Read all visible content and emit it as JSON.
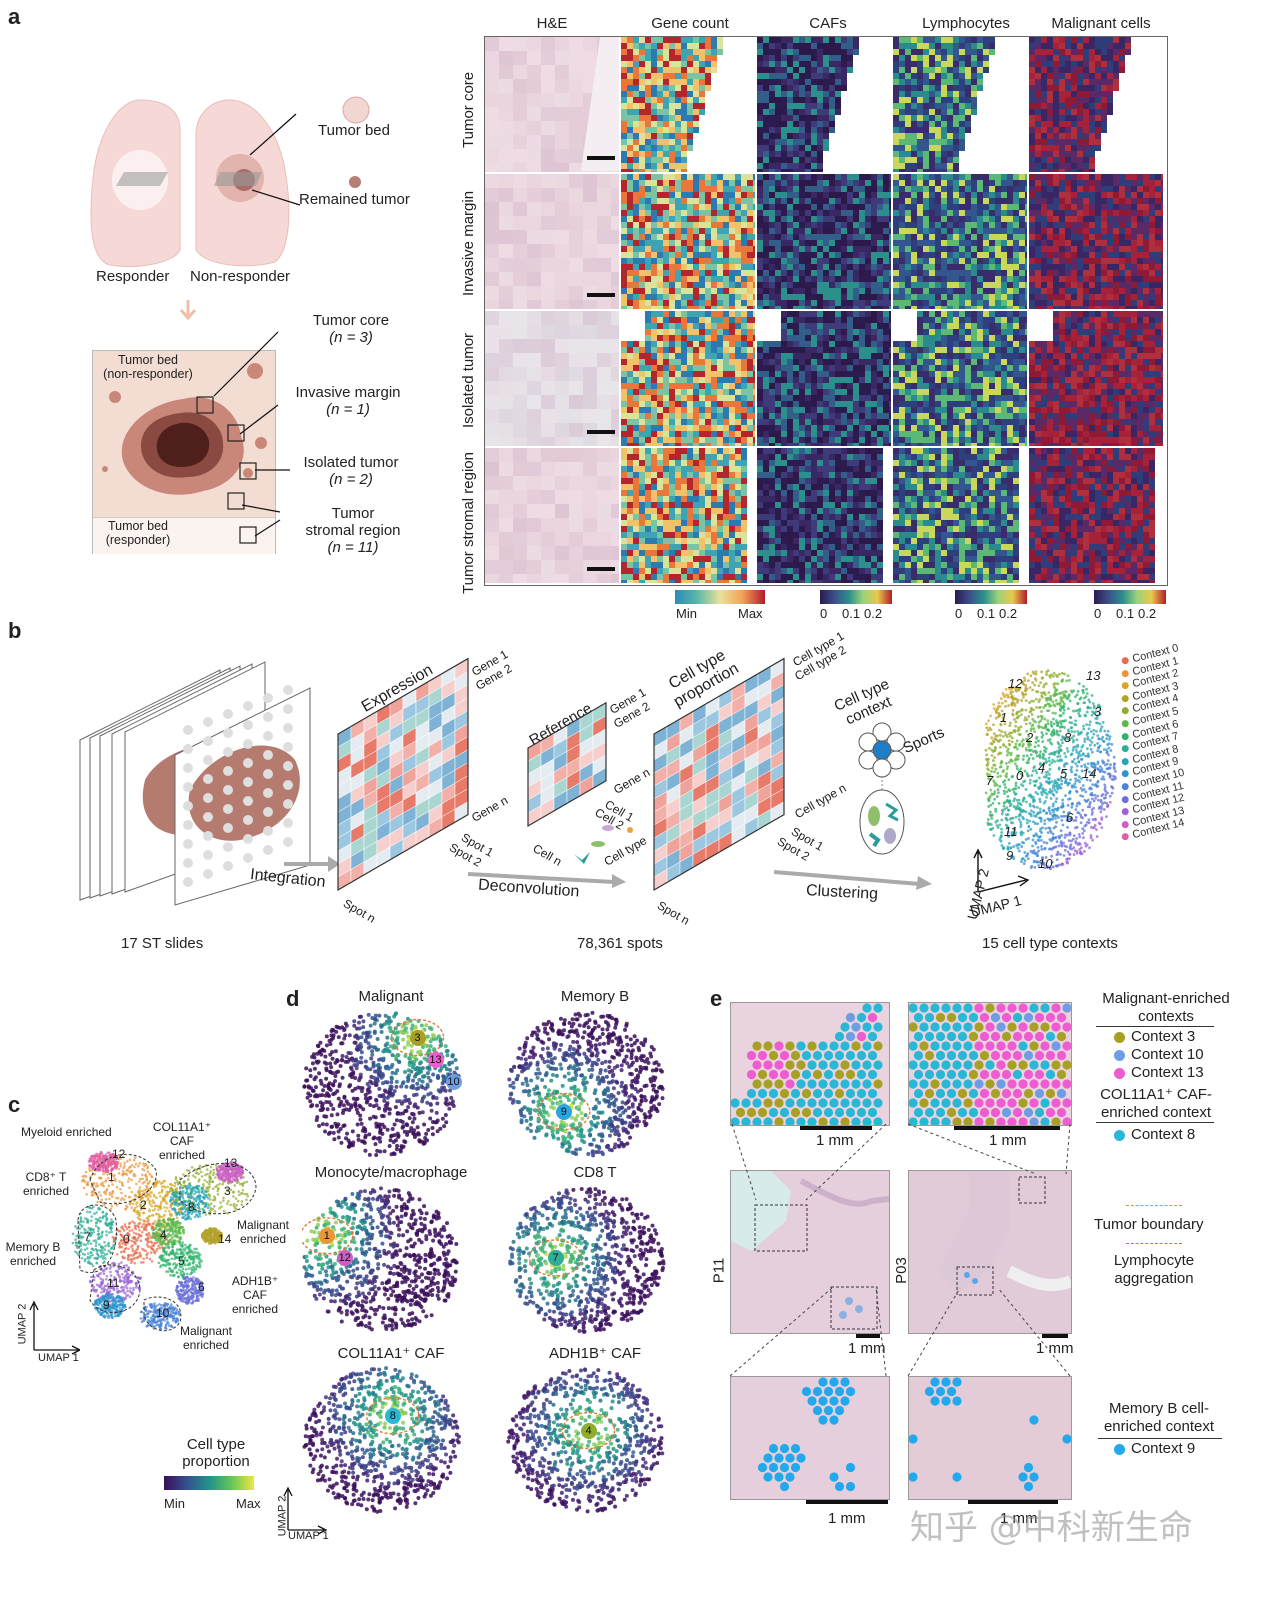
{
  "panels": {
    "a": "a",
    "b": "b",
    "c": "c",
    "d": "d",
    "e": "e"
  },
  "a": {
    "responder": "Responder",
    "non_responder": "Non-responder",
    "tumor_bed": "Tumor bed",
    "remained_tumor": "Remained tumor",
    "tumor_bed_nonresp": "Tumor bed\n(non-responder)",
    "tumor_bed_resp": "Tumor bed\n(responder)",
    "regions": [
      {
        "name": "Tumor core",
        "n": "(n = 3)"
      },
      {
        "name": "Invasive margin",
        "n": "(n = 1)"
      },
      {
        "name": "Isolated tumor",
        "n": "(n = 2)"
      },
      {
        "name": "Tumor\nstromal region",
        "n": "(n = 11)"
      }
    ],
    "columns": [
      "H&E",
      "Gene count",
      "CAFs",
      "Lymphocytes",
      "Malignant cells"
    ],
    "rows": [
      "Tumor core",
      "Invasive margin",
      "Isolated tumor",
      "Tumor stromal region"
    ],
    "colorbars": {
      "gene": {
        "min": "Min",
        "max": "Max"
      },
      "ticks": [
        "0",
        "0.1",
        "0.2"
      ]
    }
  },
  "b": {
    "slides": "17 ST slides",
    "spots": "78,361 spots",
    "contexts_caption": "15 cell type contexts",
    "integration": "Integration",
    "deconvolution": "Deconvolution",
    "clustering": "Clustering",
    "expression": "Expression",
    "reference": "Reference",
    "cell_type_proportion": "Cell type\nproportion",
    "cell_type_context": "Cell type\ncontext",
    "sports": "Sports",
    "gene1": "Gene 1",
    "gene2": "Gene 2",
    "genen": "Gene n",
    "spot1": "Spot 1",
    "spot2": "Spot 2",
    "spotn": "Spot n",
    "cell1": "Cell 1",
    "cell2": "Cell 2",
    "celln": "Cell n",
    "celltype": "Cell type",
    "celltype1": "Cell type 1",
    "celltype2": "Cell type 2",
    "celltypen": "Cell type n",
    "umap1": "UMAP 1",
    "umap2": "UMAP 2",
    "contexts": [
      "Context 0",
      "Context 1",
      "Context 2",
      "Context 3",
      "Context 4",
      "Context 5",
      "Context 6",
      "Context 7",
      "Context 8",
      "Context 9",
      "Context 10",
      "Context 11",
      "Context 12",
      "Context 13",
      "Context 14"
    ],
    "context_colors": [
      "#e86b4a",
      "#e9963b",
      "#d9a62a",
      "#b3a12a",
      "#8fae2e",
      "#5db84a",
      "#2fb36b",
      "#2fae96",
      "#2aa5b5",
      "#2f96cc",
      "#4a83d6",
      "#6a70d8",
      "#9a63d4",
      "#cc5fc4",
      "#e05fa3"
    ]
  },
  "c": {
    "labels": {
      "myeloid": "Myeloid enriched",
      "col11a1": "COL11A1⁺ CAF\nenriched",
      "cd8": "CD8⁺ T\nenriched",
      "memb": "Memory B\nenriched",
      "malig1": "Malignant\nenriched",
      "adh1b": "ADH1B⁺ CAF\nenriched",
      "malig2": "Malignant\nenriched"
    },
    "numbers": [
      "12",
      "1",
      "2",
      "3",
      "13",
      "8",
      "7",
      "0",
      "4",
      "14",
      "5",
      "6",
      "11",
      "9",
      "10"
    ],
    "cbar_title": "Cell type\nproportion",
    "cbar_min": "Min",
    "cbar_max": "Max",
    "umap1": "UMAP 1",
    "umap2": "UMAP 2"
  },
  "d": {
    "titles": [
      "Malignant",
      "Memory B",
      "Monocyte/macrophage",
      "CD8 T",
      "COL11A1⁺ CAF",
      "ADH1B⁺ CAF"
    ],
    "badges": [
      [
        "3",
        "13",
        "10"
      ],
      [
        "9"
      ],
      [
        "1",
        "12"
      ],
      [
        "7"
      ],
      [
        "8"
      ],
      [
        "4"
      ]
    ],
    "umap1": "UMAP 1",
    "umap2": "UMAP 2"
  },
  "e": {
    "scale": "1 mm",
    "p11": "P11",
    "p03": "P03",
    "legend_malig_title": "Malignant-enriched\ncontexts",
    "legend_malig": [
      "Context 3",
      "Context 10",
      "Context 13"
    ],
    "legend_malig_colors": [
      "#a7a024",
      "#6f9de3",
      "#ef5bd0"
    ],
    "legend_col_title": "COL11A1⁺ CAF-\nenriched context",
    "legend_col": [
      "Context 8"
    ],
    "legend_col_color": "#29b7d6",
    "tumor_boundary": "Tumor boundary",
    "lymph_agg": "Lymphocyte\naggregation",
    "memb_title": "Memory B cell-\nenriched context",
    "memb": [
      "Context 9"
    ],
    "memb_color": "#21a9ec"
  },
  "watermark": "知乎 @中科新生命"
}
